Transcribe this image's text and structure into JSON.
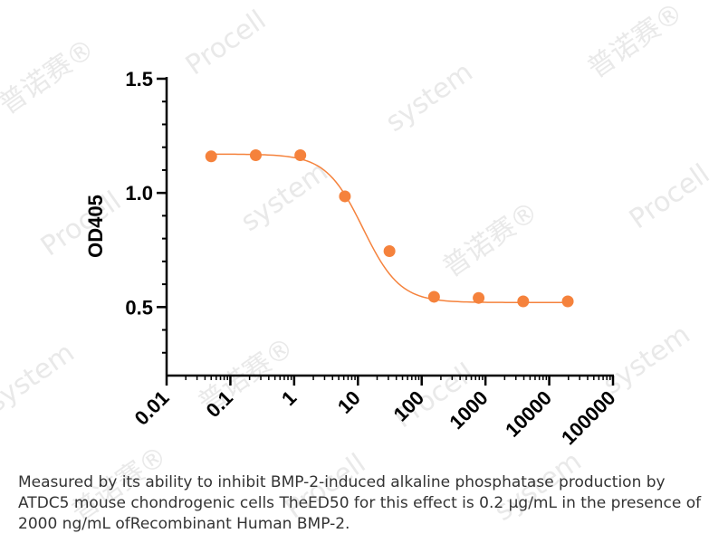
{
  "chart_data": {
    "type": "scatter",
    "x_scale": "log",
    "ylabel": "OD405",
    "xlabel": "",
    "xlim": [
      0.01,
      100000
    ],
    "ylim": [
      0.2,
      1.5
    ],
    "x_ticks": [
      "0.01",
      "0.1",
      "1",
      "10",
      "100",
      "1000",
      "10000",
      "100000"
    ],
    "y_ticks": [
      "0.5",
      "1.0",
      "1.5"
    ],
    "grid": false,
    "color": "#F5823C",
    "points": {
      "x": [
        0.05,
        0.25,
        1.25,
        6.25,
        31.25,
        156.25,
        781.25,
        3906.25,
        19531.25
      ],
      "y": [
        1.16,
        1.165,
        1.165,
        0.985,
        0.745,
        0.545,
        0.54,
        0.525,
        0.525
      ]
    },
    "fit_curve": {
      "top": 1.17,
      "bottom": 0.52,
      "ec50": 12,
      "hill": 1.5
    }
  },
  "watermark": [
    "普诺赛®",
    "Procell",
    "system"
  ],
  "caption": "Measured by its ability to inhibit BMP-2-induced alkaline phosphatase production by ATDC5 mouse chondrogenic cells TheED50 for this effect is 0.2 μg/mL in the presence of 2000 ng/mL ofRecombinant Human BMP-2."
}
